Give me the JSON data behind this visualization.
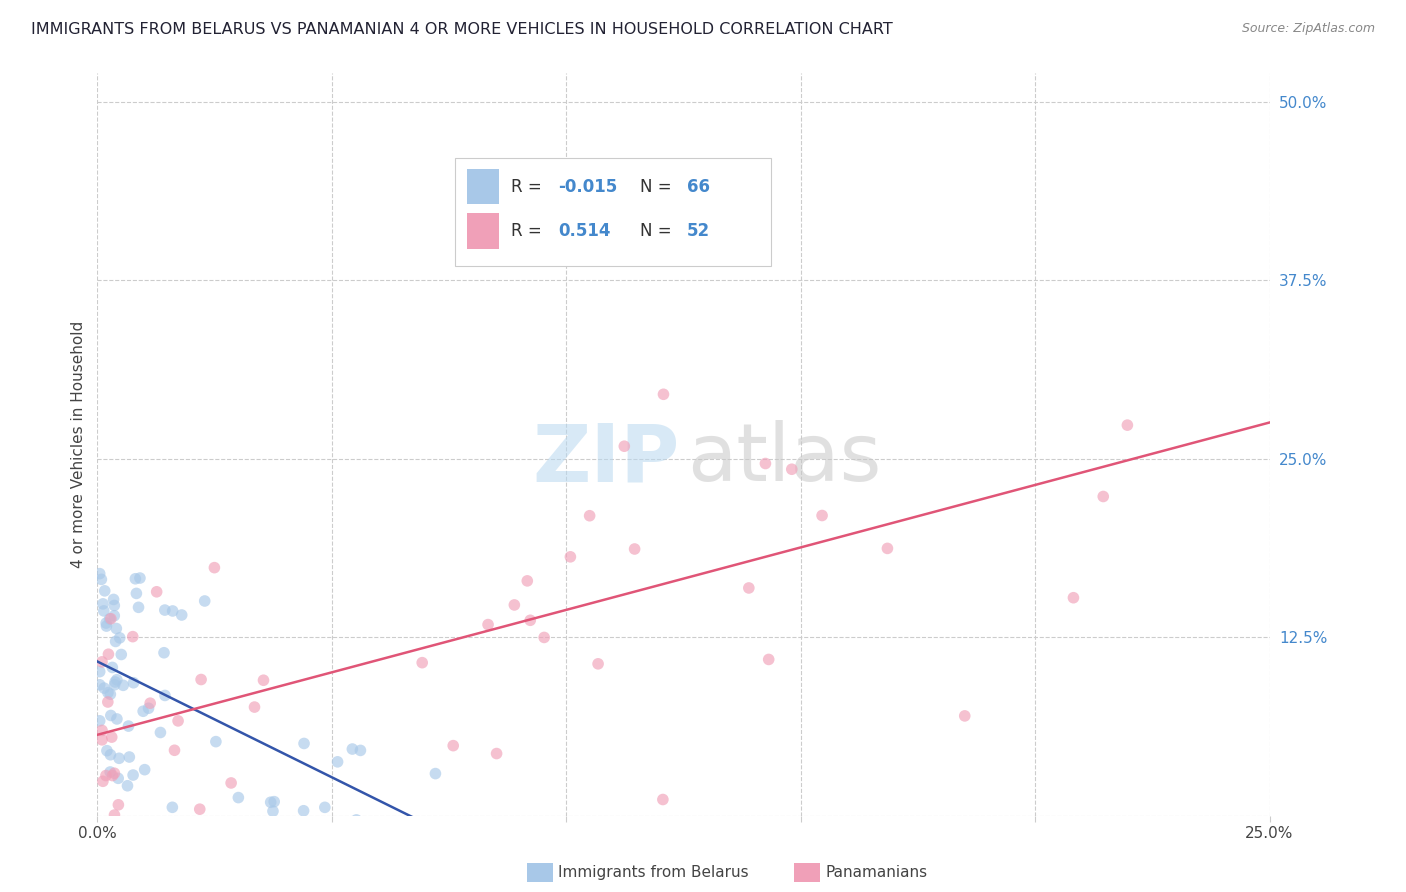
{
  "title": "IMMIGRANTS FROM BELARUS VS PANAMANIAN 4 OR MORE VEHICLES IN HOUSEHOLD CORRELATION CHART",
  "source": "Source: ZipAtlas.com",
  "ylabel": "4 or more Vehicles in Household",
  "xlim": [
    0.0,
    0.25
  ],
  "ylim": [
    0.0,
    0.52
  ],
  "color_blue": "#a8c8e8",
  "color_blue_line": "#3355aa",
  "color_pink": "#f0a0b8",
  "color_pink_line": "#e05577",
  "legend_label1": "Immigrants from Belarus",
  "legend_label2": "Panamanians",
  "background_color": "#ffffff",
  "grid_color": "#cccccc",
  "title_color": "#222233",
  "source_color": "#888888",
  "right_tick_color": "#4488cc",
  "marker_size": 70,
  "marker_alpha": 0.65
}
